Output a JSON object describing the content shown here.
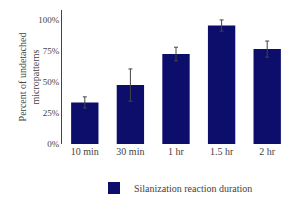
{
  "chart_data": {
    "type": "bar",
    "categories": [
      "10 min",
      "30 min",
      "1 hr",
      "1.5 hr",
      "2 hr"
    ],
    "series": [
      {
        "name": "Silanization reaction duration",
        "color": "#0d0d6b",
        "values": [
          0.335,
          0.475,
          0.725,
          0.955,
          0.765
        ],
        "errors": [
          0.045,
          0.13,
          0.055,
          0.045,
          0.065
        ]
      }
    ],
    "ylabel": "Percent of undetached\nmicropatterns",
    "ylim": [
      0,
      1.08
    ],
    "yticks": [
      {
        "value": 0.0,
        "label": "0%"
      },
      {
        "value": 0.25,
        "label": "25%"
      },
      {
        "value": 0.5,
        "label": "50%"
      },
      {
        "value": 0.75,
        "label": "75%"
      },
      {
        "value": 1.0,
        "label": "100%"
      }
    ],
    "grid": false,
    "legend": "bottom"
  }
}
